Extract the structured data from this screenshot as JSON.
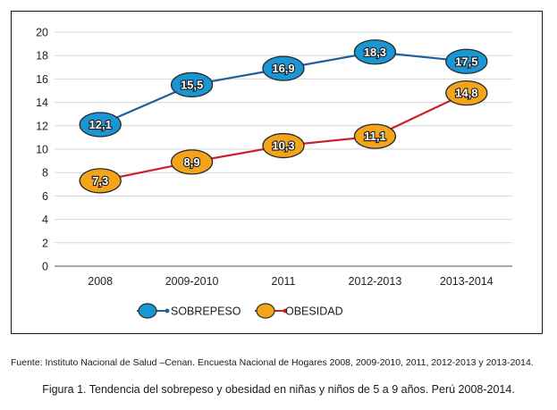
{
  "chart_data": {
    "type": "line",
    "categories": [
      "2008",
      "2009-2010",
      "2011",
      "2012-2013",
      "2013-2014"
    ],
    "series": [
      {
        "name": "SOBREPESO",
        "values": [
          12.1,
          15.5,
          16.9,
          18.3,
          17.5
        ],
        "labels": [
          "12,1",
          "15,5",
          "16,9",
          "18,3",
          "17,5"
        ],
        "line_color": "#1f5f9c",
        "marker_color": "#1a96d4"
      },
      {
        "name": "OBESIDAD",
        "values": [
          7.3,
          8.9,
          10.3,
          11.1,
          14.8
        ],
        "labels": [
          "7,3",
          "8,9",
          "10,3",
          "11,1",
          "14,8"
        ],
        "line_color": "#cc1f27",
        "marker_color": "#f3a41b"
      }
    ],
    "ylim": [
      0,
      20
    ],
    "yticks": [
      0,
      2,
      4,
      6,
      8,
      10,
      12,
      14,
      16,
      18,
      20
    ],
    "grid": true,
    "legend_position": "bottom-center"
  },
  "source": "Fuente: Instituto Nacional de Salud –Cenan. Encuesta Nacional de Hogares 2008, 2009-2010, 2011, 2012-2013 y 2013-2014.",
  "caption": "Figura 1. Tendencia del sobrepeso y obesidad en niñas y niños de 5 a 9 años. Perú 2008-2014."
}
